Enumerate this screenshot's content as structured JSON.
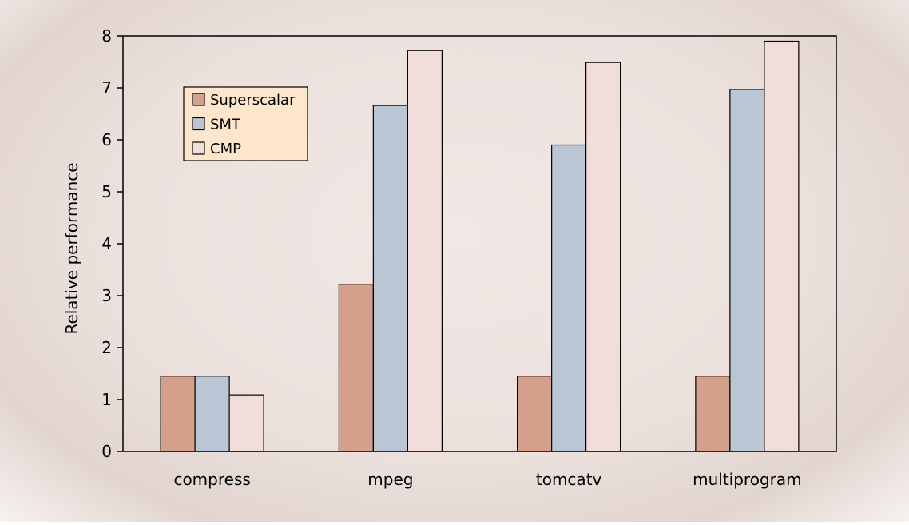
{
  "chart_data": {
    "type": "bar",
    "categories": [
      "compress",
      "mpeg",
      "tomcatv",
      "multiprogram"
    ],
    "series": [
      {
        "name": "Superscalar",
        "color": "#d49f8b",
        "values": [
          1.45,
          3.22,
          1.45,
          1.45
        ]
      },
      {
        "name": "SMT",
        "color": "#bac6d3",
        "values": [
          1.45,
          6.66,
          5.9,
          6.97
        ]
      },
      {
        "name": "CMP",
        "color": "#f1ddd9",
        "values": [
          1.09,
          7.72,
          7.49,
          7.9
        ]
      }
    ],
    "title": "",
    "xlabel": "",
    "ylabel": "Relative performance",
    "ylim": [
      0,
      8
    ],
    "yticks": [
      0,
      1,
      2,
      3,
      4,
      5,
      6,
      7,
      8
    ],
    "grid": false,
    "legend": {
      "placement": "top-left",
      "background": "#fde6cc"
    }
  }
}
